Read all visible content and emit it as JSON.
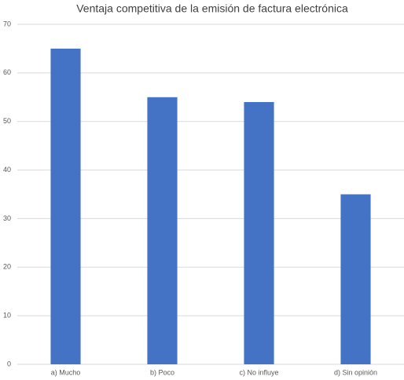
{
  "chart_data": {
    "type": "bar",
    "title": "Ventaja competitiva de la emisión de factura electrónica",
    "categories": [
      "a) Mucho",
      "b) Poco",
      "c) No influye",
      "d) Sin opinión"
    ],
    "values": [
      65,
      55,
      54,
      35
    ],
    "color": "#4472c4",
    "ylim": [
      0,
      70
    ],
    "yticks": [
      0,
      10,
      20,
      30,
      40,
      50,
      60,
      70
    ],
    "grid": true
  }
}
